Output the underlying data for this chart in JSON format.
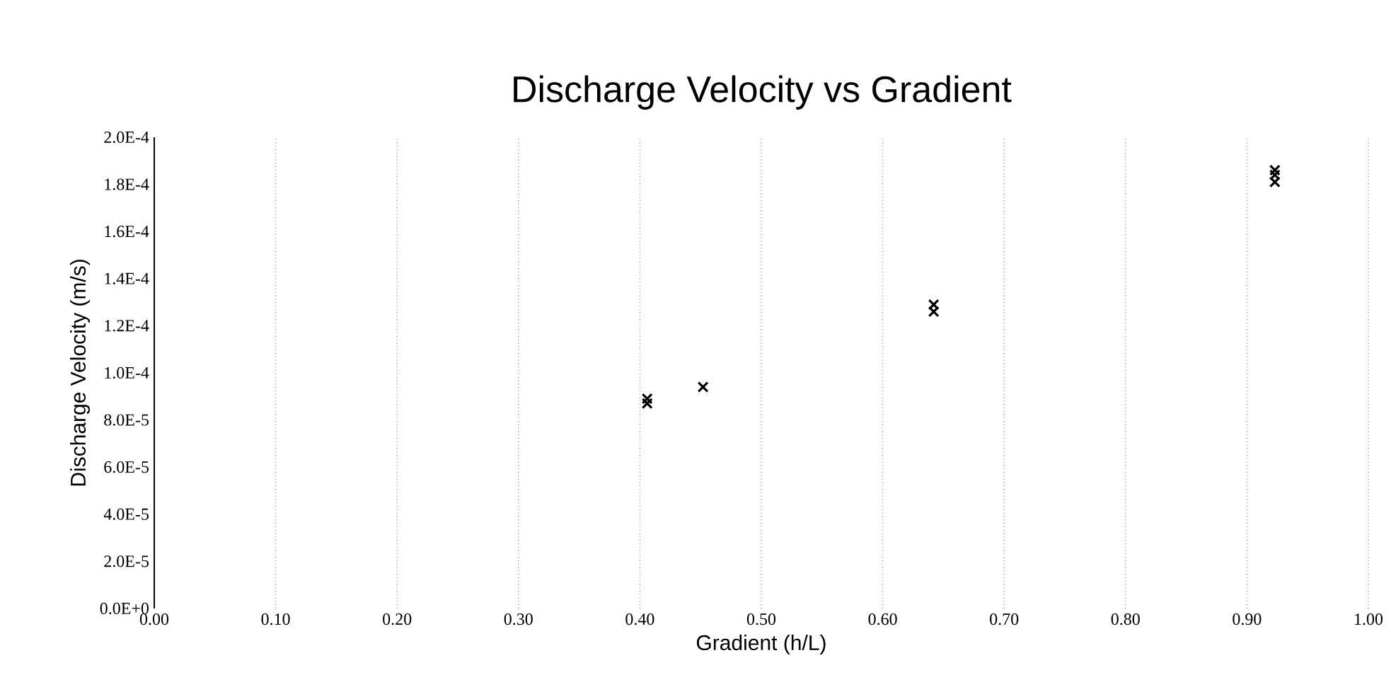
{
  "chart_data": {
    "type": "scatter",
    "title": "Discharge Velocity vs Gradient",
    "xlabel": "Gradient (h/L)",
    "ylabel": "Discharge Velocity (m/s)",
    "x": [
      0.406,
      0.406,
      0.452,
      0.642,
      0.642,
      0.923,
      0.923,
      0.923
    ],
    "values": [
      8.7e-05,
      8.9e-05,
      9.4e-05,
      0.000126,
      0.000129,
      0.000181,
      0.000184,
      0.000186
    ],
    "color": "#000000",
    "marker": "cross",
    "grid": "x",
    "xlim": [
      0,
      1
    ],
    "ylim": [
      0,
      0.0002
    ],
    "xticks": [
      {
        "value": 0,
        "label": "0.00"
      },
      {
        "value": 0.1,
        "label": "0.10"
      },
      {
        "value": 0.2,
        "label": "0.20"
      },
      {
        "value": 0.3,
        "label": "0.30"
      },
      {
        "value": 0.4,
        "label": "0.40"
      },
      {
        "value": 0.5,
        "label": "0.50"
      },
      {
        "value": 0.6,
        "label": "0.60"
      },
      {
        "value": 0.7,
        "label": "0.70"
      },
      {
        "value": 0.8,
        "label": "0.80"
      },
      {
        "value": 0.9,
        "label": "0.90"
      },
      {
        "value": 1,
        "label": "1.00"
      }
    ],
    "yticks": [
      {
        "value": 0,
        "label": "0.0E+0"
      },
      {
        "value": 2e-05,
        "label": "2.0E-5"
      },
      {
        "value": 4e-05,
        "label": "4.0E-5"
      },
      {
        "value": 6e-05,
        "label": "6.0E-5"
      },
      {
        "value": 8e-05,
        "label": "8.0E-5"
      },
      {
        "value": 0.0001,
        "label": "1.0E-4"
      },
      {
        "value": 0.00012,
        "label": "1.2E-4"
      },
      {
        "value": 0.00014,
        "label": "1.4E-4"
      },
      {
        "value": 0.00016,
        "label": "1.6E-4"
      },
      {
        "value": 0.00018,
        "label": "1.8E-4"
      },
      {
        "value": 0.0002,
        "label": "2.0E-4"
      }
    ]
  }
}
